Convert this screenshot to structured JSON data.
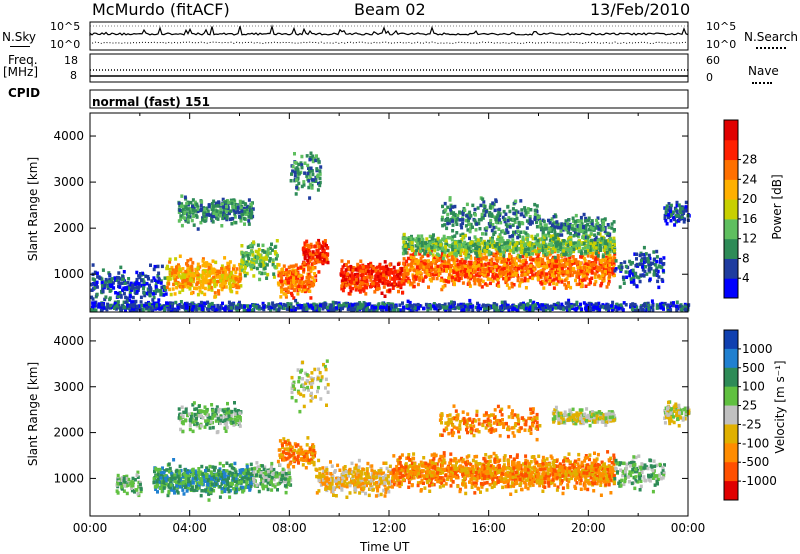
{
  "header": {
    "station": "McMurdo (fitACF)",
    "beam": "Beam 02",
    "date": "13/Feb/2010"
  },
  "top_panels": {
    "nsky_label": "N.Sky",
    "nsky_ticks": [
      "10^5",
      "10^0"
    ],
    "nsearch_label": "N.Search",
    "nsearch_ticks": [
      "10^5",
      "10^0"
    ],
    "freq_label": "Freq.",
    "freq_unit": "[MHz]",
    "freq_ticks": [
      "18",
      "8"
    ],
    "nave_label": "Nave",
    "nave_ticks": [
      "60",
      "0"
    ],
    "cpid_label": "CPID",
    "cpid_value": "normal (fast) 151"
  },
  "colors": {
    "power_scale": [
      "#0000ff",
      "#1f3c9f",
      "#2e8b57",
      "#5fbf5f",
      "#c8d000",
      "#ffb000",
      "#ff7000",
      "#ff2000",
      "#e00000"
    ],
    "velocity_scale": [
      "#1040b0",
      "#2080d0",
      "#2e8b57",
      "#60c040",
      "#c0c0c0",
      "#e0b000",
      "#ff8c00",
      "#ff5000",
      "#e00000"
    ]
  },
  "chart_data": [
    {
      "type": "heatmap",
      "quantity": "power",
      "xlabel": "",
      "ylabel": "Slant Range [km]",
      "colorbar_label": "Power [dB]",
      "colorbar_ticks": [
        "4",
        "8",
        "12",
        "16",
        "20",
        "24",
        "28"
      ],
      "yticks": [
        "1000",
        "2000",
        "3000",
        "4000"
      ],
      "ylim": [
        180,
        4500
      ],
      "xlim_hours": [
        0,
        24
      ]
    },
    {
      "type": "heatmap",
      "quantity": "velocity",
      "xlabel": "Time UT",
      "ylabel": "Slant Range [km]",
      "colorbar_label": "Velocity [m s⁻¹]",
      "colorbar_ticks": [
        "1000",
        "500",
        "100",
        "25",
        "-25",
        "-100",
        "-500",
        "-1000"
      ],
      "yticks": [
        "1000",
        "2000",
        "3000",
        "4000"
      ],
      "xticks": [
        "00:00",
        "04:00",
        "08:00",
        "12:00",
        "16:00",
        "20:00",
        "00:00"
      ],
      "ylim": [
        180,
        4500
      ],
      "xlim_hours": [
        0,
        24
      ]
    }
  ]
}
